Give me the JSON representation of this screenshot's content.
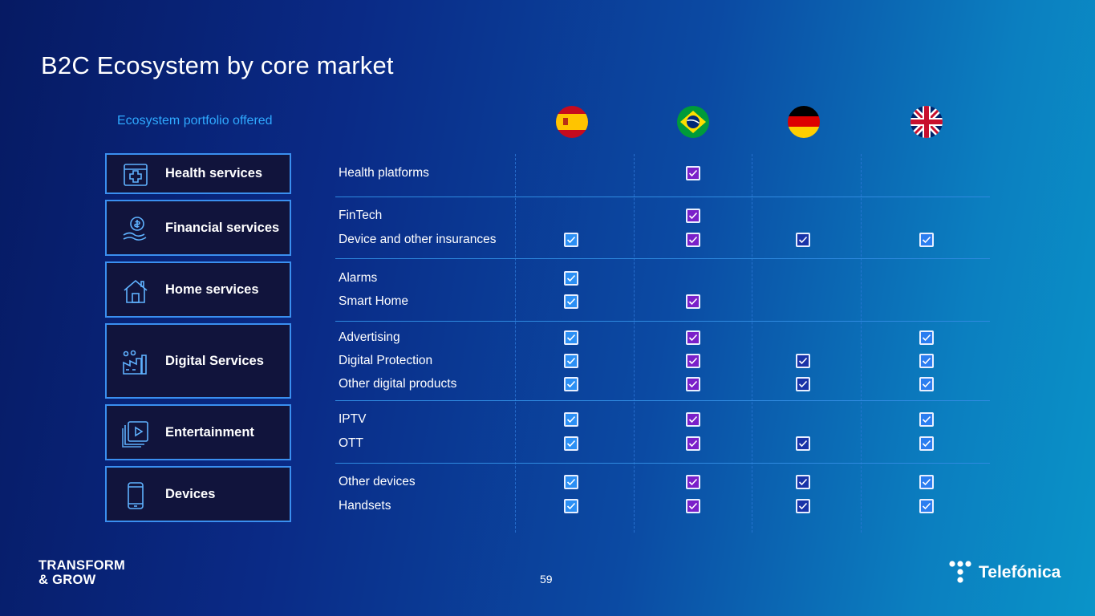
{
  "title": "B2C Ecosystem by core market",
  "subtitle": "Ecosystem portfolio offered",
  "markets": [
    {
      "key": "es",
      "flag_icon": "spain-flag-icon",
      "color": "#2b8ff4"
    },
    {
      "key": "br",
      "flag_icon": "brazil-flag-icon",
      "color": "#7a1fc9"
    },
    {
      "key": "de",
      "flag_icon": "germany-flag-icon",
      "color": "#1933a8"
    },
    {
      "key": "uk",
      "flag_icon": "uk-flag-icon",
      "color": "#2b7df0"
    }
  ],
  "categories": [
    {
      "label": "Health services",
      "icon": "health-icon"
    },
    {
      "label": "Financial services",
      "icon": "finance-icon"
    },
    {
      "label": "Home services",
      "icon": "home-icon"
    },
    {
      "label": "Digital Services",
      "icon": "digital-icon"
    },
    {
      "label": "Entertainment",
      "icon": "entertainment-icon"
    },
    {
      "label": "Devices",
      "icon": "devices-icon"
    }
  ],
  "rows": [
    {
      "label": "Health platforms",
      "es": false,
      "br": true,
      "de": false,
      "uk": false
    },
    {
      "label": "FinTech",
      "es": false,
      "br": true,
      "de": false,
      "uk": false
    },
    {
      "label": "Device and other insurances",
      "es": true,
      "br": true,
      "de": true,
      "uk": true
    },
    {
      "label": "Alarms",
      "es": true,
      "br": false,
      "de": false,
      "uk": false
    },
    {
      "label": "Smart Home",
      "es": true,
      "br": true,
      "de": false,
      "uk": false
    },
    {
      "label": "Advertising",
      "es": true,
      "br": true,
      "de": false,
      "uk": true
    },
    {
      "label": "Digital Protection",
      "es": true,
      "br": true,
      "de": true,
      "uk": true
    },
    {
      "label": "Other digital products",
      "es": true,
      "br": true,
      "de": true,
      "uk": true
    },
    {
      "label": "IPTV",
      "es": true,
      "br": true,
      "de": false,
      "uk": true
    },
    {
      "label": "OTT",
      "es": true,
      "br": true,
      "de": true,
      "uk": true
    },
    {
      "label": "Other devices",
      "es": true,
      "br": true,
      "de": true,
      "uk": true
    },
    {
      "label": "Handsets",
      "es": true,
      "br": true,
      "de": true,
      "uk": true
    }
  ],
  "footer": {
    "brand_line1": "TRANSFORM",
    "brand_line2": "& GROW",
    "page_number": "59",
    "logo_text": "Telefónica",
    "logo_icon": "telefonica-logo-icon"
  }
}
